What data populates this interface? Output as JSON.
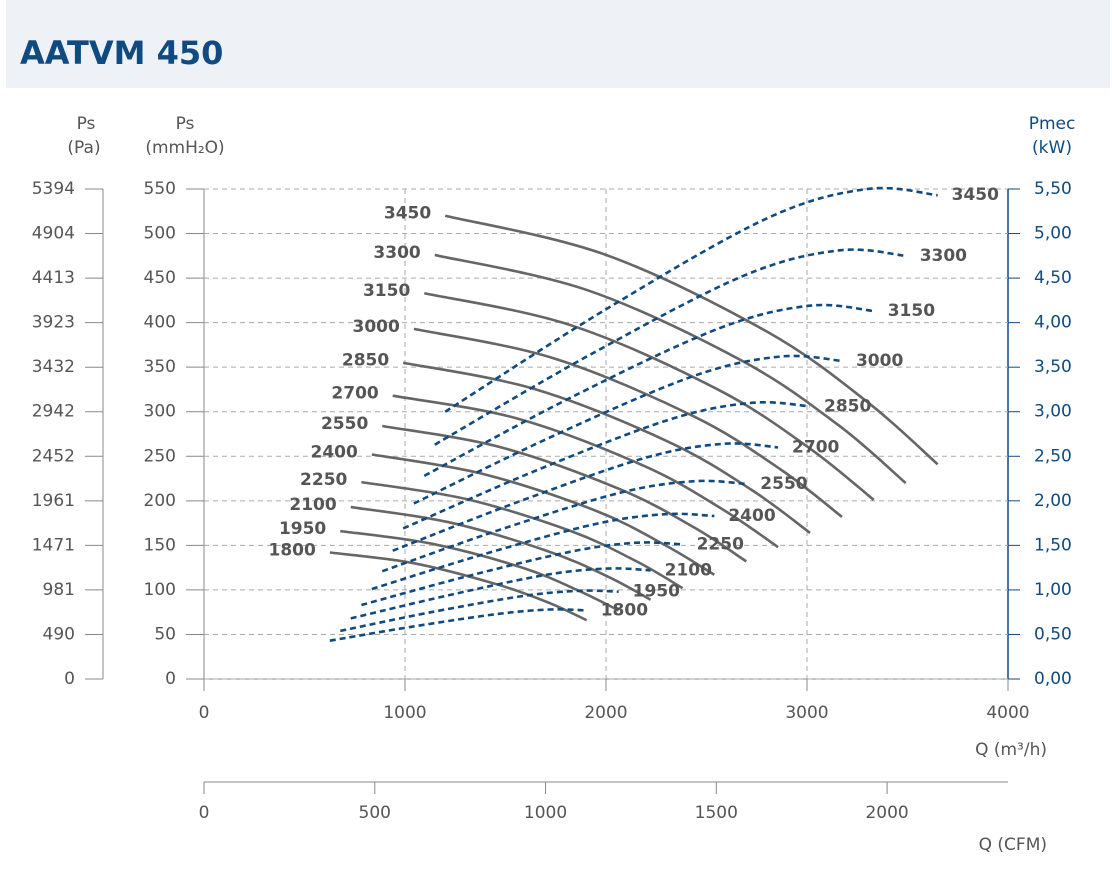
{
  "chart_data": {
    "type": "line",
    "title": "AATVM 450",
    "x_label": "Q (m³/h)",
    "x2_label": "Q (CFM)",
    "y_label": "Ps",
    "y_unit": "(mmH₂O)",
    "y3_label": "Ps",
    "y3_unit": "(Pa)",
    "y2_label": "Pmec",
    "y2_unit": "(kW)",
    "grid": true,
    "xlim": [
      0,
      4000
    ],
    "xticks": [
      0,
      1000,
      2000,
      3000,
      4000
    ],
    "x2lim": [
      0,
      2354
    ],
    "x2ticks": [
      0,
      500,
      1000,
      1500,
      2000
    ],
    "ylim": [
      0,
      550
    ],
    "yticks": [
      0,
      50,
      100,
      150,
      200,
      250,
      300,
      350,
      400,
      450,
      500,
      550
    ],
    "y3lim": [
      0,
      5394
    ],
    "y3ticks": [
      0,
      490,
      981,
      1471,
      1961,
      2452,
      2942,
      3432,
      3923,
      4413,
      4904,
      5394
    ],
    "y2lim": [
      0,
      5.5
    ],
    "y2ticks": [
      {
        "value": 0,
        "label": "0,00"
      },
      {
        "value": 0.5,
        "label": "0,50"
      },
      {
        "value": 1,
        "label": "1,00"
      },
      {
        "value": 1.5,
        "label": "1,50"
      },
      {
        "value": 2,
        "label": "2,00"
      },
      {
        "value": 2.5,
        "label": "2,50"
      },
      {
        "value": 3,
        "label": "3,00"
      },
      {
        "value": 3.5,
        "label": "3,50"
      },
      {
        "value": 4,
        "label": "4,00"
      },
      {
        "value": 4.5,
        "label": "4,50"
      },
      {
        "value": 5,
        "label": "5,00"
      },
      {
        "value": 5.5,
        "label": "5,50"
      }
    ],
    "series": [
      {
        "name": "3450",
        "axis": "y",
        "color": "#666666",
        "x": [
          1200,
          2000,
          2800,
          3300,
          3650
        ],
        "values": [
          520,
          476,
          390,
          311,
          241
        ]
      },
      {
        "name": "3300",
        "axis": "y",
        "color": "#666666",
        "x": [
          1148,
          1913,
          2678,
          3156,
          3491
        ],
        "values": [
          476,
          436,
          357,
          285,
          220
        ]
      },
      {
        "name": "3150",
        "axis": "y",
        "color": "#666666",
        "x": [
          1096,
          1826,
          2556,
          3013,
          3332
        ],
        "values": [
          433,
          397,
          325,
          259,
          201
        ]
      },
      {
        "name": "3000",
        "axis": "y",
        "color": "#666666",
        "x": [
          1044,
          1739,
          2435,
          2870,
          3174
        ],
        "values": [
          393,
          360,
          295,
          235,
          182
        ]
      },
      {
        "name": "2850",
        "axis": "y",
        "color": "#666666",
        "x": [
          991,
          1652,
          2313,
          2726,
          3015
        ],
        "values": [
          355,
          325,
          266,
          212,
          164
        ]
      },
      {
        "name": "2700",
        "axis": "y",
        "color": "#666666",
        "x": [
          939,
          1565,
          2191,
          2583,
          2856
        ],
        "values": [
          318,
          292,
          239,
          190,
          148
        ]
      },
      {
        "name": "2550",
        "axis": "y",
        "color": "#666666",
        "x": [
          887,
          1478,
          2069,
          2439,
          2698
        ],
        "values": [
          284,
          260,
          213,
          170,
          132
        ]
      },
      {
        "name": "2400",
        "axis": "y",
        "color": "#666666",
        "x": [
          835,
          1391,
          1948,
          2296,
          2539
        ],
        "values": [
          252,
          230,
          189,
          150,
          117
        ]
      },
      {
        "name": "2250",
        "axis": "y",
        "color": "#666666",
        "x": [
          783,
          1304,
          1826,
          2152,
          2381
        ],
        "values": [
          221,
          202,
          166,
          132,
          102
        ]
      },
      {
        "name": "2100",
        "axis": "y",
        "color": "#666666",
        "x": [
          730,
          1217,
          1704,
          2009,
          2222
        ],
        "values": [
          193,
          176,
          144,
          115,
          89
        ]
      },
      {
        "name": "1950",
        "axis": "y",
        "color": "#666666",
        "x": [
          678,
          1130,
          1583,
          1865,
          2063
        ],
        "values": [
          166,
          152,
          125,
          99,
          77
        ]
      },
      {
        "name": "1800",
        "axis": "y",
        "color": "#666666",
        "x": [
          626,
          1043,
          1461,
          1722,
          1904
        ],
        "values": [
          142,
          130,
          106,
          85,
          66
        ]
      },
      {
        "name": "3450",
        "axis": "y2",
        "color": "#0f4a80",
        "x": [
          1200,
          2000,
          2800,
          3300,
          3650
        ],
        "values": [
          3.0,
          4.15,
          5.17,
          5.5,
          5.43
        ]
      },
      {
        "name": "3300",
        "axis": "y2",
        "color": "#0f4a80",
        "x": [
          1148,
          1913,
          2678,
          3156,
          3491
        ],
        "values": [
          2.63,
          3.63,
          4.52,
          4.81,
          4.75
        ]
      },
      {
        "name": "3150",
        "axis": "y2",
        "color": "#0f4a80",
        "x": [
          1096,
          1826,
          2556,
          3013,
          3332
        ],
        "values": [
          2.28,
          3.16,
          3.93,
          4.19,
          4.13
        ]
      },
      {
        "name": "3000",
        "axis": "y2",
        "color": "#0f4a80",
        "x": [
          1044,
          1739,
          2435,
          2870,
          3174
        ],
        "values": [
          1.97,
          2.73,
          3.4,
          3.62,
          3.57
        ]
      },
      {
        "name": "2850",
        "axis": "y2",
        "color": "#0f4a80",
        "x": [
          991,
          1652,
          2313,
          2726,
          3015
        ],
        "values": [
          1.69,
          2.34,
          2.91,
          3.1,
          3.06
        ]
      },
      {
        "name": "2700",
        "axis": "y2",
        "color": "#0f4a80",
        "x": [
          939,
          1565,
          2191,
          2583,
          2856
        ],
        "values": [
          1.44,
          1.99,
          2.48,
          2.64,
          2.6
        ]
      },
      {
        "name": "2550",
        "axis": "y2",
        "color": "#0f4a80",
        "x": [
          887,
          1478,
          2069,
          2439,
          2698
        ],
        "values": [
          1.21,
          1.68,
          2.09,
          2.22,
          2.19
        ]
      },
      {
        "name": "2400",
        "axis": "y2",
        "color": "#0f4a80",
        "x": [
          835,
          1391,
          1948,
          2296,
          2539
        ],
        "values": [
          1.01,
          1.4,
          1.74,
          1.85,
          1.83
        ]
      },
      {
        "name": "2250",
        "axis": "y2",
        "color": "#0f4a80",
        "x": [
          783,
          1304,
          1826,
          2152,
          2381
        ],
        "values": [
          0.83,
          1.15,
          1.43,
          1.53,
          1.51
        ]
      },
      {
        "name": "2100",
        "axis": "y2",
        "color": "#0f4a80",
        "x": [
          730,
          1217,
          1704,
          2009,
          2222
        ],
        "values": [
          0.68,
          0.94,
          1.17,
          1.24,
          1.22
        ]
      },
      {
        "name": "1950",
        "axis": "y2",
        "color": "#0f4a80",
        "x": [
          678,
          1130,
          1583,
          1865,
          2063
        ],
        "values": [
          0.54,
          0.75,
          0.93,
          0.99,
          0.98
        ]
      },
      {
        "name": "1800",
        "axis": "y2",
        "color": "#0f4a80",
        "x": [
          626,
          1043,
          1461,
          1722,
          1904
        ],
        "values": [
          0.43,
          0.59,
          0.73,
          0.78,
          0.77
        ]
      }
    ]
  }
}
